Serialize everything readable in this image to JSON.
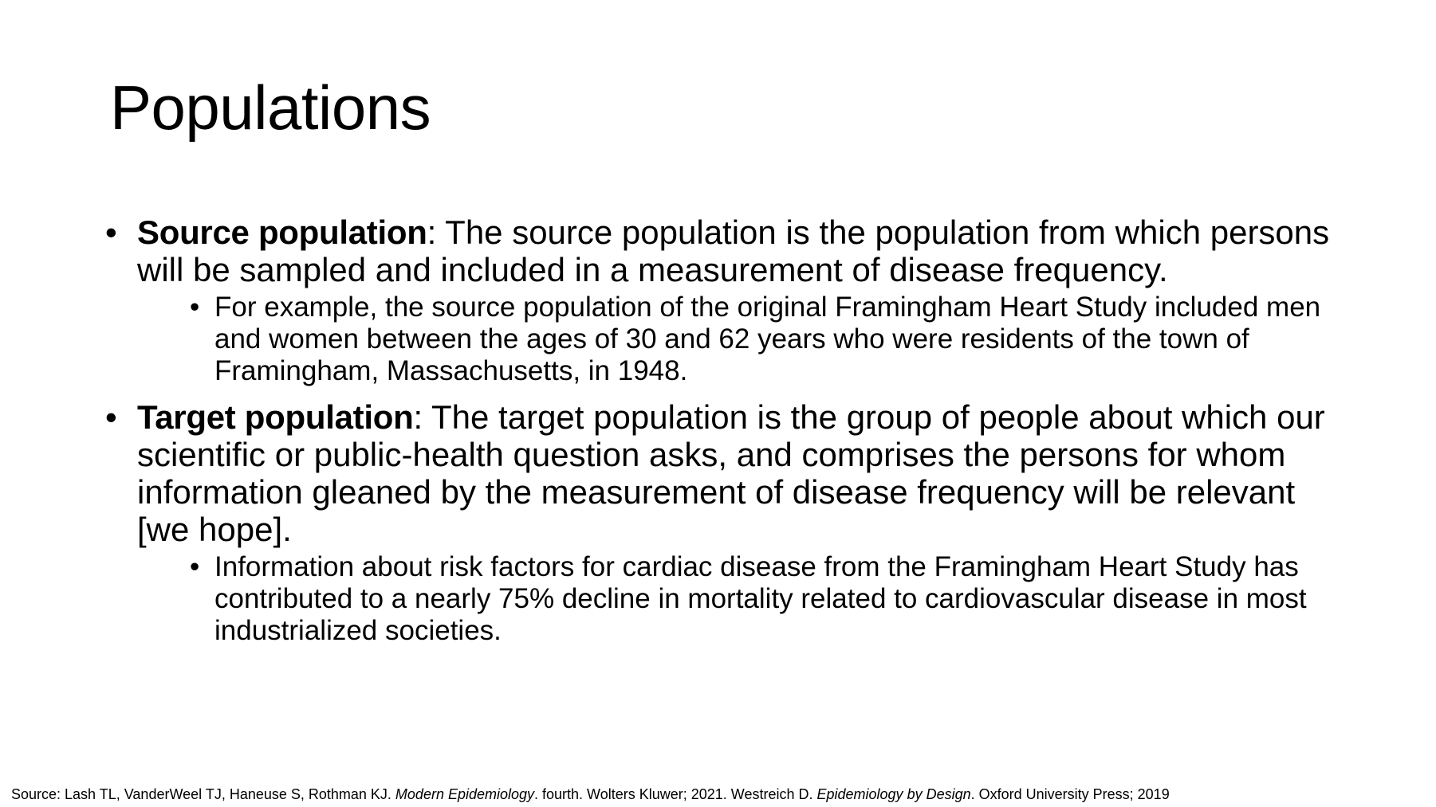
{
  "slide": {
    "title": "Populations",
    "bullets": [
      {
        "term": "Source population",
        "separator": ":",
        "text": " The source population is the population from which persons will be sampled and included in a measurement of disease frequency.",
        "sub": "For example, the source population of the original Framingham Heart Study included men and women between the ages of 30 and 62 years who were residents of the town of Framingham, Massachusetts, in 1948."
      },
      {
        "term": "Target population",
        "separator": ":",
        "text": " The target population is the group of people about which our scientific or public-health question asks, and comprises the persons for whom information gleaned by the measurement of disease frequency will be relevant [we hope].",
        "sub": "Information about risk factors for cardiac disease from the Framingham Heart Study has contributed to a nearly 75% decline in mortality related to cardiovascular disease in most industrialized societies."
      }
    ],
    "source": {
      "prefix": "Source: Lash TL, VanderWeel TJ, Haneuse S, Rothman KJ. ",
      "book1": "Modern Epidemiology",
      "middle": ". fourth. Wolters Kluwer; 2021. Westreich D. ",
      "book2": "Epidemiology by Design",
      "suffix": ". Oxford University Press; 2019"
    }
  }
}
